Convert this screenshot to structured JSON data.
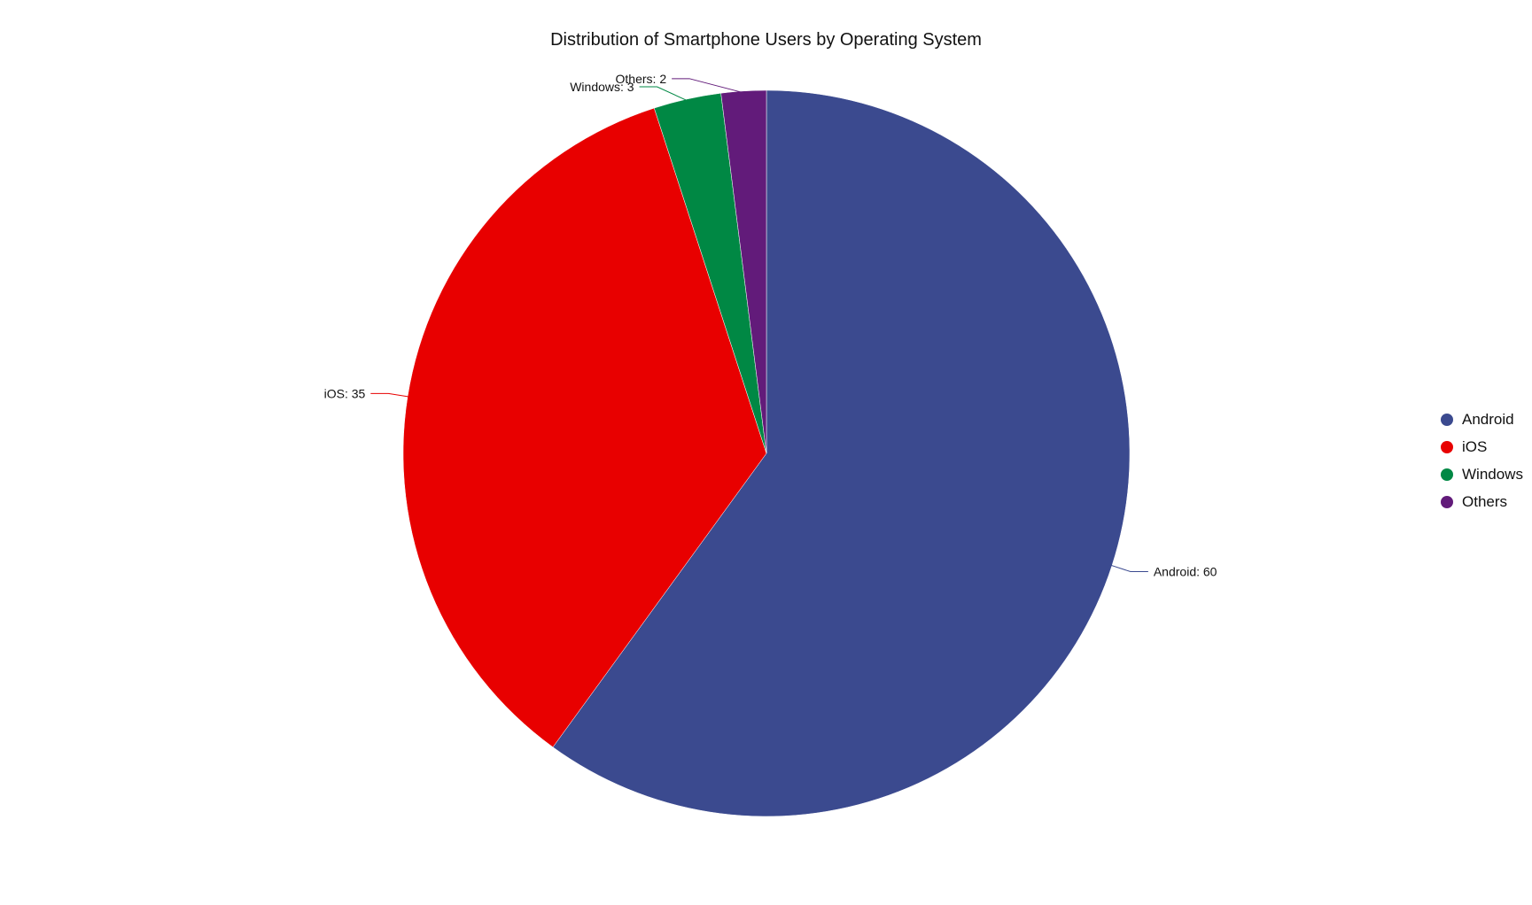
{
  "chart_data": {
    "type": "pie",
    "title": "Distribution of Smartphone Users by Operating System",
    "slices": [
      {
        "label": "Android",
        "value": 60,
        "color": "#3b4a8f",
        "data_label": "Android: 60"
      },
      {
        "label": "iOS",
        "value": 35,
        "color": "#e80000",
        "data_label": "iOS: 35"
      },
      {
        "label": "Windows",
        "value": 3,
        "color": "#008844",
        "data_label": "Windows: 3"
      },
      {
        "label": "Others",
        "value": 2,
        "color": "#621b7a",
        "data_label": "Others: 2"
      }
    ],
    "legend": {
      "position": "right",
      "items": [
        "Android",
        "iOS",
        "Windows",
        "Others"
      ]
    },
    "direction": "clockwise",
    "start_angle": "top"
  }
}
